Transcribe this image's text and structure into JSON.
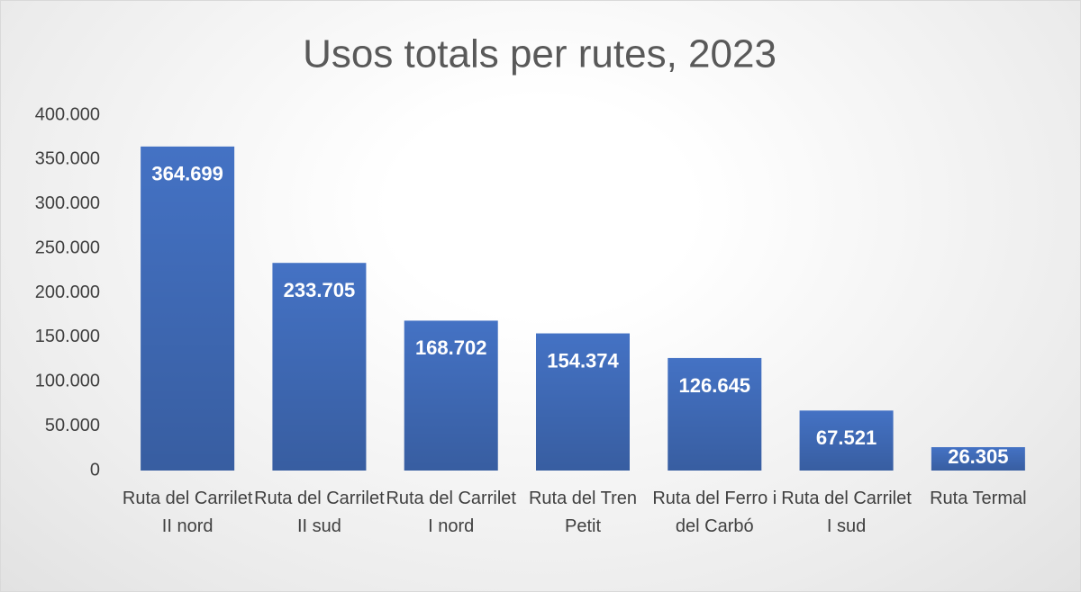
{
  "chart_data": {
    "type": "bar",
    "title": "Usos totals per rutes, 2023",
    "categories": [
      "Ruta del Carrilet II nord",
      "Ruta del Carrilet II sud",
      "Ruta del Carrilet I nord",
      "Ruta del Tren Petit",
      "Ruta del Ferro i del Carbó",
      "Ruta del Carrilet I sud",
      "Ruta Termal"
    ],
    "values": [
      364699,
      233705,
      168702,
      154374,
      126645,
      67521,
      26305
    ],
    "value_labels": [
      "364.699",
      "233.705",
      "168.702",
      "154.374",
      "126.645",
      "67.521",
      "26.305"
    ],
    "color": "#4472c4",
    "ylim": [
      0,
      400000
    ],
    "yticks": [
      0,
      {
        "value": 50000,
        "label": "50.000"
      },
      {
        "value": 100000,
        "label": "100.000"
      },
      {
        "value": 150000,
        "label": "150.000"
      },
      {
        "value": 200000,
        "label": "200.000"
      },
      {
        "value": 250000,
        "label": "250.000"
      },
      {
        "value": 300000,
        "label": "300.000"
      },
      {
        "value": 350000,
        "label": "350.000"
      },
      {
        "value": 400000,
        "label": "400.000"
      }
    ],
    "grid": false
  }
}
